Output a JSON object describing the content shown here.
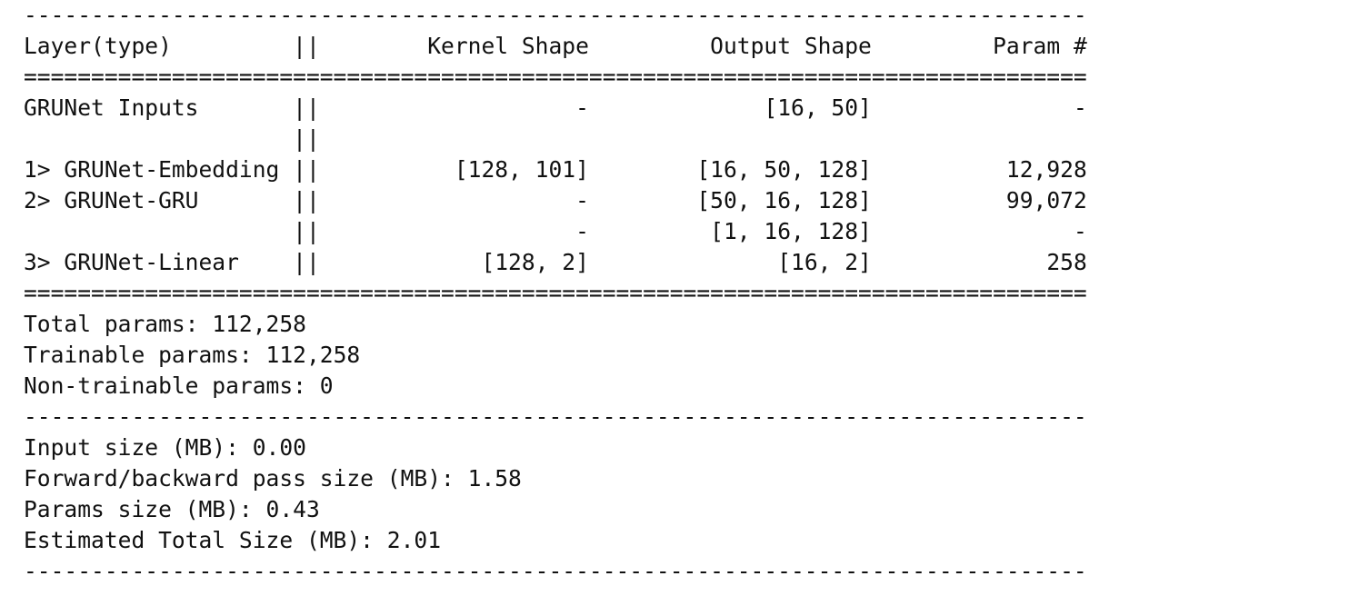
{
  "summary": {
    "rule_dash": "-------------------------------------------------------------------------------",
    "rule_equal": "===============================================================================",
    "header": {
      "layer": "Layer(type)",
      "kernel": "Kernel Shape",
      "output": "Output Shape",
      "param": "Param #"
    },
    "rows": [
      {
        "layer": "GRUNet Inputs",
        "kernel": "-",
        "output": "[16, 50]",
        "param": "-"
      },
      {
        "layer": "",
        "kernel": "",
        "output": "",
        "param": ""
      },
      {
        "layer": "1> GRUNet-Embedding",
        "kernel": "[128, 101]",
        "output": "[16, 50, 128]",
        "param": "12,928"
      },
      {
        "layer": "2> GRUNet-GRU",
        "kernel": "-",
        "output": "[50, 16, 128]",
        "param": "99,072"
      },
      {
        "layer": "",
        "kernel": "-",
        "output": "[1, 16, 128]",
        "param": "-"
      },
      {
        "layer": "3> GRUNet-Linear",
        "kernel": "[128, 2]",
        "output": "[16, 2]",
        "param": "258"
      }
    ],
    "params": {
      "total_label": "Total params:",
      "total_value": "112,258",
      "trainable_label": "Trainable params:",
      "trainable_value": "112,258",
      "non_trainable_label": "Non-trainable params:",
      "non_trainable_value": "0"
    },
    "sizes": {
      "input_label": "Input size (MB):",
      "input_value": "0.00",
      "forward_label": "Forward/backward pass size (MB):",
      "forward_value": "1.58",
      "params_label": "Params size (MB):",
      "params_value": "0.43",
      "estimated_label": "Estimated Total Size (MB):",
      "estimated_value": "2.01"
    }
  }
}
